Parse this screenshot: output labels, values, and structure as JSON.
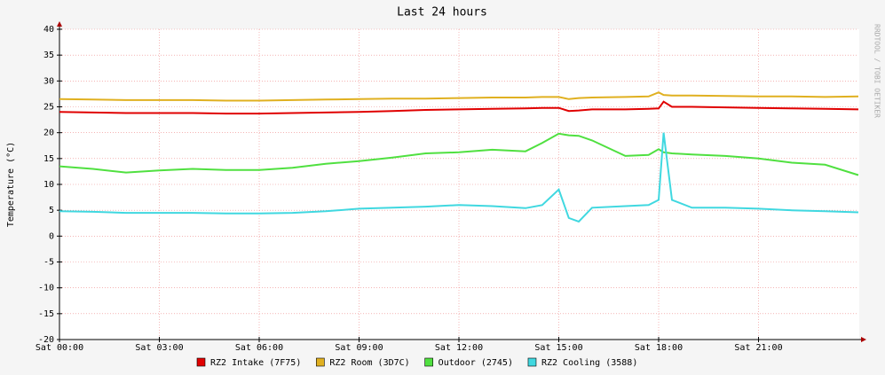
{
  "chart_data": {
    "type": "line",
    "title": "Last 24 hours",
    "y_label": "Temperature (°C)",
    "watermark": "RRDTOOL / TOBI OETIKER",
    "x": [
      0,
      1,
      2,
      3,
      4,
      5,
      6,
      7,
      8,
      9,
      10,
      11,
      12,
      13,
      14,
      14.5,
      15,
      15.3,
      15.6,
      16,
      17,
      17.7,
      18,
      18.15,
      18.4,
      19,
      20,
      21,
      22,
      23,
      24
    ],
    "xlim": [
      0,
      24
    ],
    "xticks": [
      {
        "value": 0,
        "label": "Sat 00:00"
      },
      {
        "value": 3,
        "label": "Sat 03:00"
      },
      {
        "value": 6,
        "label": "Sat 06:00"
      },
      {
        "value": 9,
        "label": "Sat 09:00"
      },
      {
        "value": 12,
        "label": "Sat 12:00"
      },
      {
        "value": 15,
        "label": "Sat 15:00"
      },
      {
        "value": 18,
        "label": "Sat 18:00"
      },
      {
        "value": 21,
        "label": "Sat 21:00"
      }
    ],
    "ylim": [
      -20,
      40
    ],
    "yticks": [
      -20,
      -15,
      -10,
      -5,
      0,
      5,
      10,
      15,
      20,
      25,
      30,
      35,
      40
    ],
    "grid": true,
    "series": [
      {
        "name": "RZ2 Intake (7F75)",
        "color": "#e00000",
        "values": [
          24,
          23.9,
          23.8,
          23.8,
          23.8,
          23.7,
          23.7,
          23.8,
          23.9,
          24,
          24.2,
          24.4,
          24.5,
          24.6,
          24.7,
          24.8,
          24.8,
          24.2,
          24.3,
          24.5,
          24.5,
          24.6,
          24.7,
          26,
          25,
          25,
          24.9,
          24.8,
          24.7,
          24.6,
          24.5
        ]
      },
      {
        "name": "RZ2 Room (3D7C)",
        "color": "#e0b020",
        "values": [
          26.5,
          26.4,
          26.3,
          26.3,
          26.3,
          26.2,
          26.2,
          26.3,
          26.4,
          26.5,
          26.6,
          26.6,
          26.7,
          26.8,
          26.8,
          26.9,
          26.9,
          26.5,
          26.7,
          26.8,
          26.9,
          27,
          27.8,
          27.3,
          27.2,
          27.2,
          27.1,
          27,
          27,
          26.9,
          27
        ]
      },
      {
        "name": "Outdoor (2745)",
        "color": "#50e040",
        "values": [
          13.5,
          13,
          12.3,
          12.7,
          13,
          12.8,
          12.8,
          13.2,
          14,
          14.5,
          15.2,
          16,
          16.2,
          16.7,
          16.4,
          18,
          19.8,
          19.5,
          19.4,
          18.5,
          15.5,
          15.7,
          16.8,
          16.2,
          16,
          15.8,
          15.5,
          15,
          14.2,
          13.8,
          11.8
        ]
      },
      {
        "name": "RZ2 Cooling (3588)",
        "color": "#40d8e0",
        "values": [
          4.8,
          4.7,
          4.5,
          4.5,
          4.5,
          4.4,
          4.4,
          4.5,
          4.8,
          5.3,
          5.5,
          5.7,
          6,
          5.8,
          5.4,
          6,
          9,
          3.5,
          2.8,
          5.5,
          5.8,
          6,
          7,
          20,
          7,
          5.5,
          5.5,
          5.3,
          5,
          4.8,
          4.6
        ]
      }
    ]
  }
}
